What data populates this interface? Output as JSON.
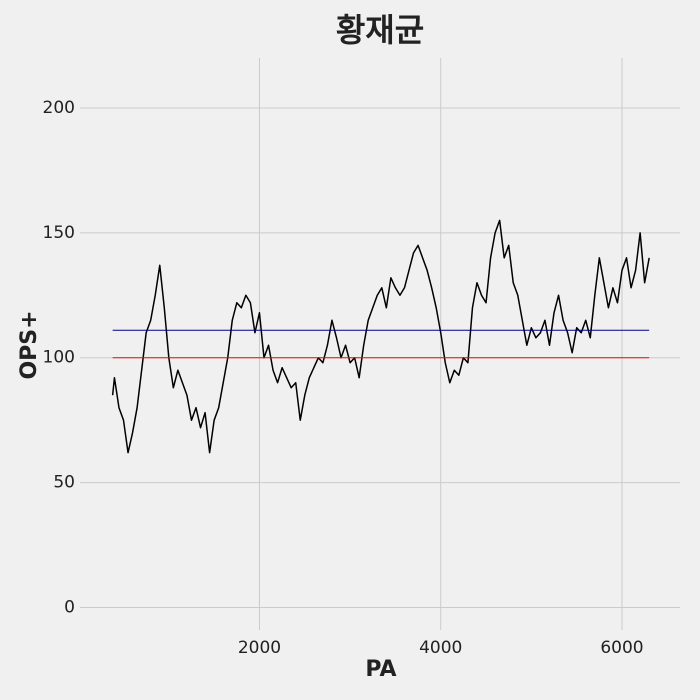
{
  "chart_data": {
    "type": "line",
    "title": "황재균",
    "xlabel": "PA",
    "ylabel": "OPS+",
    "x": [
      380,
      400,
      450,
      500,
      550,
      600,
      650,
      700,
      750,
      800,
      850,
      900,
      950,
      1000,
      1050,
      1100,
      1150,
      1200,
      1250,
      1300,
      1350,
      1400,
      1450,
      1500,
      1550,
      1600,
      1650,
      1700,
      1750,
      1800,
      1850,
      1900,
      1950,
      2000,
      2050,
      2100,
      2150,
      2200,
      2250,
      2300,
      2350,
      2400,
      2450,
      2500,
      2550,
      2600,
      2650,
      2700,
      2750,
      2800,
      2850,
      2900,
      2950,
      3000,
      3050,
      3100,
      3150,
      3200,
      3250,
      3300,
      3350,
      3400,
      3450,
      3500,
      3550,
      3600,
      3650,
      3700,
      3750,
      3800,
      3850,
      3900,
      3950,
      4000,
      4050,
      4100,
      4150,
      4200,
      4250,
      4300,
      4350,
      4400,
      4450,
      4500,
      4550,
      4600,
      4650,
      4700,
      4750,
      4800,
      4850,
      4900,
      4950,
      5000,
      5050,
      5100,
      5150,
      5200,
      5250,
      5300,
      5350,
      5400,
      5450,
      5500,
      5550,
      5600,
      5650,
      5700,
      5750,
      5800,
      5850,
      5900,
      5950,
      6000,
      6050,
      6100,
      6150,
      6200,
      6250,
      6300
    ],
    "series": [
      {
        "color": "#000000",
        "values": [
          85,
          92,
          80,
          75,
          62,
          70,
          80,
          95,
          110,
          115,
          125,
          137,
          120,
          100,
          88,
          95,
          90,
          85,
          75,
          80,
          72,
          78,
          62,
          75,
          80,
          90,
          100,
          115,
          122,
          120,
          125,
          122,
          110,
          118,
          100,
          105,
          95,
          90,
          96,
          92,
          88,
          90,
          75,
          85,
          92,
          96,
          100,
          98,
          105,
          115,
          108,
          100,
          105,
          98,
          100,
          92,
          105,
          115,
          120,
          125,
          128,
          120,
          132,
          128,
          125,
          128,
          135,
          142,
          145,
          140,
          135,
          128,
          120,
          110,
          98,
          90,
          95,
          93,
          100,
          98,
          120,
          130,
          125,
          122,
          140,
          150,
          155,
          140,
          145,
          130,
          125,
          115,
          105,
          112,
          108,
          110,
          115,
          105,
          118,
          125,
          115,
          110,
          102,
          112,
          110,
          115,
          108,
          125,
          140,
          130,
          120,
          128,
          122,
          135,
          140,
          128,
          135,
          150,
          130,
          140
        ]
      }
    ],
    "hlines": [
      {
        "value": 111,
        "color": "#00008b"
      },
      {
        "value": 100,
        "color": "#ff0000"
      }
    ],
    "xlim": [
      20,
      6640
    ],
    "ylim": [
      -9,
      220
    ],
    "xticks": [
      2000,
      4000,
      6000
    ],
    "yticks": [
      0,
      50,
      100,
      150,
      200
    ],
    "grid": true
  }
}
